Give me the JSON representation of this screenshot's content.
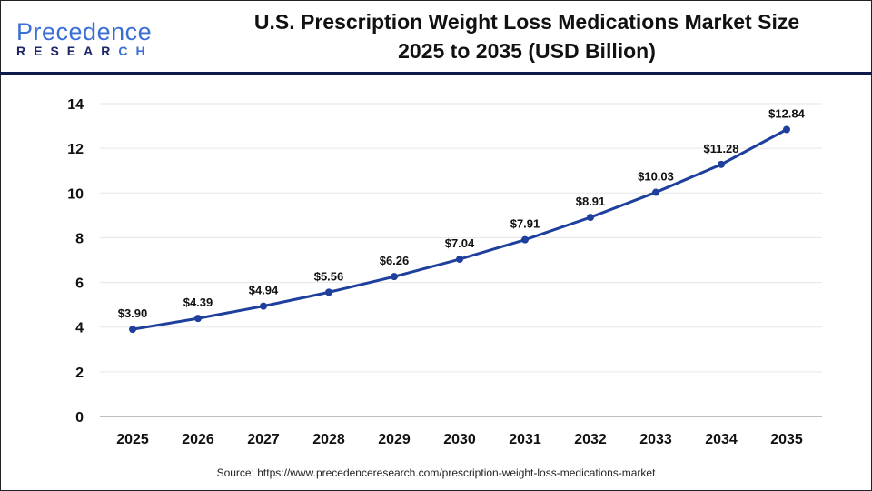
{
  "logo": {
    "line1_a": "Pre",
    "line1_b": "cedence",
    "line2_a": "RESEAR",
    "line2_b": "CH"
  },
  "title": {
    "line1": "U.S. Prescription Weight Loss Medications Market Size",
    "line2": "2025 to 2035 (USD Billion)"
  },
  "source": "Source: https://www.precedenceresearch.com/prescription-weight-loss-medications-market",
  "colors": {
    "line": "#1f3f9c",
    "grid": "#e6e6e6",
    "axis": "#bfbfbf"
  },
  "chart_data": {
    "type": "line",
    "title": "U.S. Prescription Weight Loss Medications Market Size 2025 to 2035 (USD Billion)",
    "categories": [
      "2025",
      "2026",
      "2027",
      "2028",
      "2029",
      "2030",
      "2031",
      "2032",
      "2033",
      "2034",
      "2035"
    ],
    "values": [
      3.9,
      4.39,
      4.94,
      5.56,
      6.26,
      7.04,
      7.91,
      8.91,
      10.03,
      11.28,
      12.84
    ],
    "data_labels": [
      "$3.90",
      "$4.39",
      "$4.94",
      "$5.56",
      "$6.26",
      "$7.04",
      "$7.91",
      "$8.91",
      "$10.03",
      "$11.28",
      "$12.84"
    ],
    "yticks": [
      0,
      2,
      4,
      6,
      8,
      10,
      12,
      14
    ],
    "ylim": [
      0,
      14
    ],
    "grid": true,
    "legend": "none"
  }
}
